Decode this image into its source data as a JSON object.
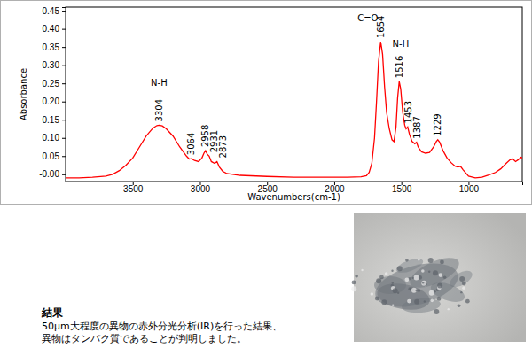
{
  "chart_data": {
    "type": "line",
    "x_label": "Wavenumbers(cm-1)",
    "y_label": "Absorbance",
    "xlim": [
      4000,
      600
    ],
    "xticks": [
      3500,
      3000,
      2500,
      2000,
      1500,
      1000
    ],
    "ylim": [
      -0.02,
      0.46
    ],
    "yticks": [
      {
        "value": 0,
        "label": "-0.00"
      },
      0.05,
      {
        "value": 0.1,
        "label": "0.10"
      },
      0.15,
      {
        "value": 0.2,
        "label": "0.20"
      },
      0.25,
      {
        "value": 0.3,
        "label": "0.30"
      },
      0.35,
      {
        "value": 0.4,
        "label": "0.40"
      },
      0.45
    ],
    "grid": false,
    "x": [
      4000,
      3900,
      3800,
      3700,
      3650,
      3600,
      3550,
      3500,
      3450,
      3400,
      3350,
      3320,
      3304,
      3280,
      3250,
      3200,
      3150,
      3100,
      3080,
      3064,
      3040,
      3010,
      2985,
      2970,
      2958,
      2945,
      2931,
      2915,
      2890,
      2873,
      2855,
      2830,
      2800,
      2700,
      2500,
      2300,
      2100,
      1900,
      1800,
      1760,
      1740,
      1720,
      1700,
      1685,
      1670,
      1654,
      1640,
      1625,
      1610,
      1590,
      1570,
      1555,
      1540,
      1528,
      1516,
      1505,
      1490,
      1475,
      1465,
      1453,
      1440,
      1420,
      1400,
      1387,
      1375,
      1350,
      1320,
      1290,
      1260,
      1240,
      1229,
      1215,
      1190,
      1160,
      1130,
      1100,
      1080,
      1060,
      1040,
      1000,
      950,
      900,
      850,
      800,
      760,
      720,
      690,
      670,
      650,
      630,
      610,
      600
    ],
    "series": [
      {
        "color": "#ff0000",
        "values": [
          -0.01,
          -0.01,
          -0.008,
          -0.005,
          0.0,
          0.01,
          0.025,
          0.045,
          0.075,
          0.105,
          0.127,
          0.134,
          0.135,
          0.133,
          0.125,
          0.105,
          0.075,
          0.05,
          0.042,
          0.043,
          0.038,
          0.035,
          0.045,
          0.058,
          0.065,
          0.055,
          0.05,
          0.035,
          0.03,
          0.035,
          0.02,
          0.008,
          0.002,
          -0.003,
          -0.006,
          -0.008,
          -0.008,
          -0.008,
          -0.007,
          -0.004,
          0.005,
          0.03,
          0.1,
          0.2,
          0.31,
          0.365,
          0.33,
          0.24,
          0.17,
          0.125,
          0.095,
          0.09,
          0.13,
          0.21,
          0.255,
          0.235,
          0.17,
          0.135,
          0.125,
          0.13,
          0.11,
          0.09,
          0.084,
          0.088,
          0.075,
          0.062,
          0.058,
          0.06,
          0.075,
          0.09,
          0.095,
          0.088,
          0.065,
          0.045,
          0.032,
          0.022,
          0.02,
          0.022,
          0.012,
          -0.005,
          -0.01,
          -0.008,
          -0.002,
          0.005,
          0.015,
          0.03,
          0.04,
          0.042,
          0.035,
          0.04,
          0.047,
          0.045
        ]
      }
    ],
    "peak_labels": [
      {
        "text": "3304",
        "x": 3304,
        "y": 0.135
      },
      {
        "text": "3064",
        "x": 3064,
        "y": 0.043
      },
      {
        "text": "2958",
        "x": 2958,
        "y": 0.065
      },
      {
        "text": "2931",
        "x": 2931,
        "y": 0.05
      },
      {
        "text": "2873",
        "x": 2873,
        "y": 0.035
      },
      {
        "text": "1654",
        "x": 1654,
        "y": 0.365
      },
      {
        "text": "1516",
        "x": 1516,
        "y": 0.255
      },
      {
        "text": "1453",
        "x": 1453,
        "y": 0.13
      },
      {
        "text": "1387",
        "x": 1387,
        "y": 0.088
      },
      {
        "text": "1229",
        "x": 1229,
        "y": 0.095
      }
    ],
    "group_labels": [
      {
        "text": "N-H",
        "x": 3304,
        "y": 0.244
      },
      {
        "text": "C=O",
        "x": 1750,
        "y": 0.42
      },
      {
        "text": "N-H",
        "x": 1505,
        "y": 0.35
      }
    ]
  },
  "result": {
    "heading": "結果",
    "lines": [
      "50μm大程度の異物の赤外分光分析(IR)を行った結果、",
      "異物はタンパク質であることが判明しました。"
    ]
  }
}
